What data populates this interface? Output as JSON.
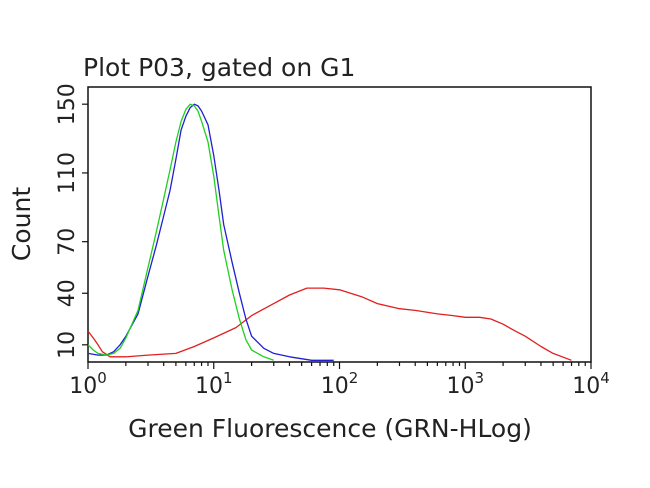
{
  "chart_data": {
    "type": "line",
    "title": "Plot P03, gated on G1",
    "xlabel": "Green Fluorescence (GRN-HLog)",
    "ylabel": "Count",
    "x_scale": "log",
    "xlim": [
      1,
      10000
    ],
    "ylim": [
      0,
      160
    ],
    "x_ticks": [
      {
        "value": 1,
        "base": "10",
        "exp": "0"
      },
      {
        "value": 10,
        "base": "10",
        "exp": "1"
      },
      {
        "value": 100,
        "base": "10",
        "exp": "2"
      },
      {
        "value": 1000,
        "base": "10",
        "exp": "3"
      },
      {
        "value": 10000,
        "base": "10",
        "exp": "4"
      }
    ],
    "y_ticks": [
      {
        "value": 10,
        "label": "10"
      },
      {
        "value": 40,
        "label": "40"
      },
      {
        "value": 70,
        "label": "70"
      },
      {
        "value": 110,
        "label": "110"
      },
      {
        "value": 150,
        "label": "150"
      }
    ],
    "grid": false,
    "legend": "none",
    "series": [
      {
        "color": "#e02020",
        "points": [
          [
            1.0,
            18
          ],
          [
            1.1,
            14
          ],
          [
            1.2,
            10
          ],
          [
            1.3,
            6
          ],
          [
            1.5,
            3
          ],
          [
            2.0,
            3
          ],
          [
            3.0,
            4
          ],
          [
            5.0,
            5
          ],
          [
            7.0,
            9
          ],
          [
            10,
            14
          ],
          [
            15,
            20
          ],
          [
            20,
            27
          ],
          [
            30,
            34
          ],
          [
            40,
            39
          ],
          [
            55,
            43
          ],
          [
            75,
            43
          ],
          [
            100,
            42
          ],
          [
            150,
            38
          ],
          [
            200,
            34
          ],
          [
            300,
            31
          ],
          [
            400,
            30
          ],
          [
            600,
            28
          ],
          [
            800,
            27
          ],
          [
            1000,
            26
          ],
          [
            1300,
            26
          ],
          [
            1600,
            25
          ],
          [
            2000,
            22
          ],
          [
            2500,
            18
          ],
          [
            3000,
            15
          ],
          [
            4000,
            9
          ],
          [
            5000,
            5
          ],
          [
            7000,
            1
          ]
        ]
      },
      {
        "color": "#2020d0",
        "points": [
          [
            1.0,
            5
          ],
          [
            1.2,
            4
          ],
          [
            1.4,
            4
          ],
          [
            1.6,
            6
          ],
          [
            1.8,
            10
          ],
          [
            2.0,
            15
          ],
          [
            2.5,
            28
          ],
          [
            3.0,
            50
          ],
          [
            3.5,
            68
          ],
          [
            4.0,
            85
          ],
          [
            4.5,
            100
          ],
          [
            5.0,
            118
          ],
          [
            5.5,
            135
          ],
          [
            6.0,
            143
          ],
          [
            6.5,
            148
          ],
          [
            7.0,
            150
          ],
          [
            7.5,
            149
          ],
          [
            8.0,
            146
          ],
          [
            9.0,
            138
          ],
          [
            10,
            120
          ],
          [
            11,
            100
          ],
          [
            12,
            80
          ],
          [
            14,
            58
          ],
          [
            16,
            40
          ],
          [
            18,
            25
          ],
          [
            20,
            15
          ],
          [
            25,
            8
          ],
          [
            30,
            5
          ],
          [
            40,
            3
          ],
          [
            60,
            1
          ],
          [
            90,
            1
          ]
        ]
      },
      {
        "color": "#20d020",
        "points": [
          [
            1.0,
            10
          ],
          [
            1.1,
            7
          ],
          [
            1.2,
            5
          ],
          [
            1.4,
            4
          ],
          [
            1.6,
            5
          ],
          [
            1.8,
            8
          ],
          [
            2.0,
            14
          ],
          [
            2.5,
            30
          ],
          [
            3.0,
            55
          ],
          [
            3.5,
            76
          ],
          [
            4.0,
            95
          ],
          [
            4.5,
            112
          ],
          [
            5.0,
            128
          ],
          [
            5.5,
            140
          ],
          [
            6.0,
            147
          ],
          [
            6.5,
            150
          ],
          [
            7.0,
            149
          ],
          [
            7.5,
            146
          ],
          [
            8.0,
            140
          ],
          [
            9.0,
            128
          ],
          [
            10,
            108
          ],
          [
            11,
            85
          ],
          [
            12,
            65
          ],
          [
            14,
            42
          ],
          [
            16,
            25
          ],
          [
            18,
            13
          ],
          [
            20,
            7
          ],
          [
            25,
            3
          ],
          [
            30,
            1
          ]
        ]
      }
    ]
  }
}
